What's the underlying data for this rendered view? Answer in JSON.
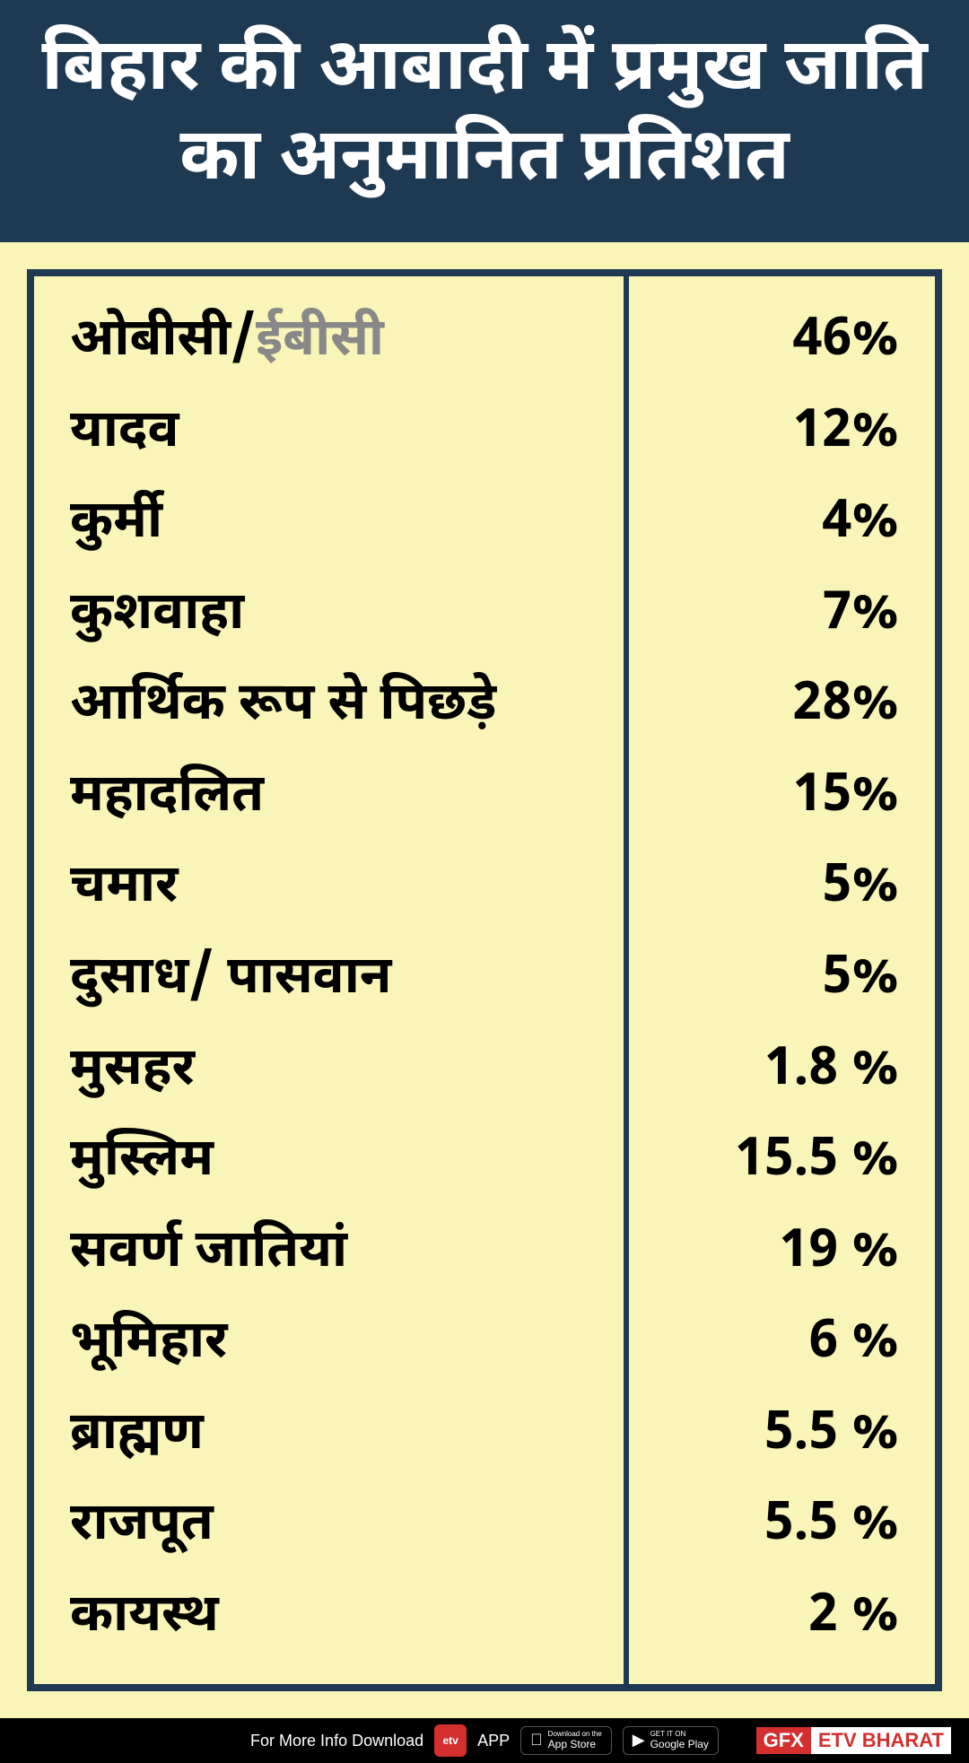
{
  "title": "बिहार की आबादी में प्रमुख जाति का  अनुमानित प्रतिशत",
  "table": {
    "type": "table",
    "border_color": "#1e3a52",
    "background_color": "#f9f4b8",
    "text_color": "#000000",
    "font_weight": "bold",
    "rows": [
      {
        "label_pre": "ओबीसी/",
        "label_grey": "ईबीसी",
        "value": "46%"
      },
      {
        "label": "यादव",
        "value": "12%"
      },
      {
        "label": " कुर्मी",
        "value": "4%"
      },
      {
        "label": "कुशवाहा",
        "value": "7%"
      },
      {
        "label": "आर्थिक रूप से पिछड़े",
        "value": "28%"
      },
      {
        "label": "महादलित",
        "value": "15%"
      },
      {
        "label": "चमार",
        "value": "5%"
      },
      {
        "label": "दुसाध/ पासवान",
        "value": "5%"
      },
      {
        "label": "मुसहर",
        "value": "1.8 %"
      },
      {
        "label": "मुस्लिम",
        "value": "15.5 %"
      },
      {
        "label": "सवर्ण जातियां",
        "value": "19 %"
      },
      {
        "label": "भूमिहार",
        "value": "6 %"
      },
      {
        "label": "ब्राह्मण",
        "value": "5.5 %"
      },
      {
        "label": "राजपूत",
        "value": "5.5 %"
      },
      {
        "label": "कायस्थ",
        "value": "2 %"
      }
    ]
  },
  "header": {
    "background_color": "#1e3a52",
    "text_color": "#ffffff",
    "font_size_pt": 60
  },
  "footer": {
    "text": "For More Info Download",
    "app_label": "APP",
    "appstore_small": "Download on the",
    "appstore_big": "App Store",
    "play_small": "GET IT ON",
    "play_big": "Google Play",
    "brand_left": "GFX",
    "brand_right": "ETV BHARAT"
  }
}
